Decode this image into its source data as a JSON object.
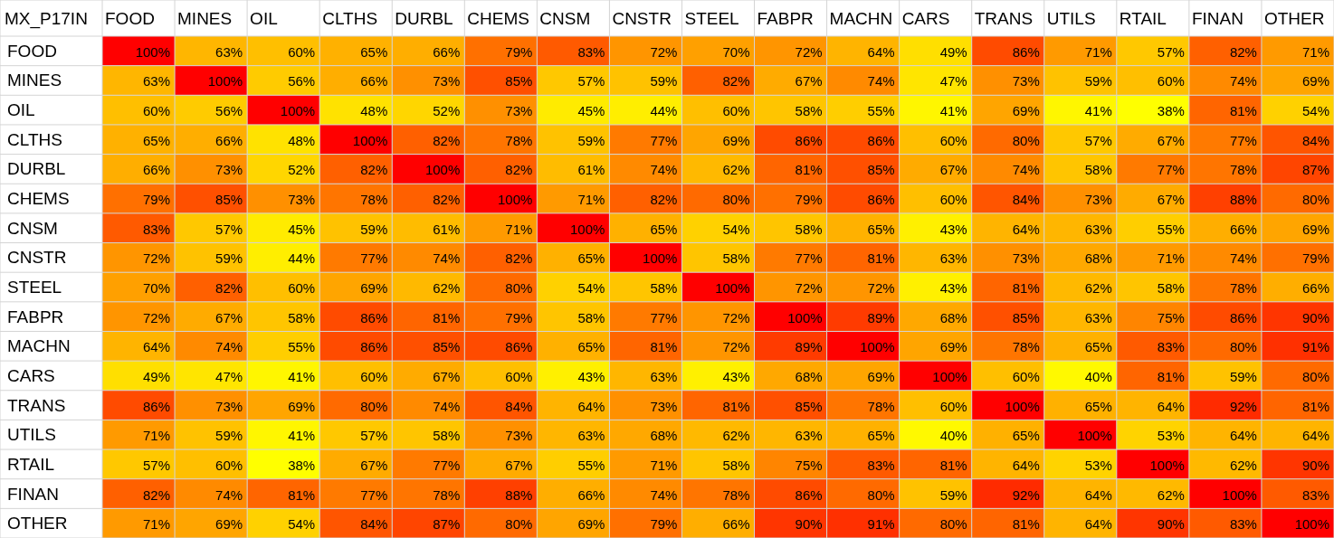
{
  "chart_data": {
    "type": "heatmap",
    "title": "MX_P17IN",
    "categories": [
      "FOOD",
      "MINES",
      "OIL",
      "CLTHS",
      "DURBL",
      "CHEMS",
      "CNSM",
      "CNSTR",
      "STEEL",
      "FABPR",
      "MACHN",
      "CARS",
      "TRANS",
      "UTILS",
      "RTAIL",
      "FINAN",
      "OTHER"
    ],
    "y_categories": [
      "FOOD",
      "MINES",
      "OIL",
      "CLTHS",
      "DURBL",
      "CHEMS",
      "CNSM",
      "CNSTR",
      "STEEL",
      "FABPR",
      "MACHN",
      "CARS",
      "TRANS",
      "UTILS",
      "RTAIL",
      "FINAN",
      "OTHER"
    ],
    "cells": [
      [
        100,
        63,
        60,
        65,
        66,
        79,
        83,
        72,
        70,
        72,
        64,
        49,
        86,
        71,
        57,
        82,
        71
      ],
      [
        63,
        100,
        56,
        66,
        73,
        85,
        57,
        59,
        82,
        67,
        74,
        47,
        73,
        59,
        60,
        74,
        69
      ],
      [
        60,
        56,
        100,
        48,
        52,
        73,
        45,
        44,
        60,
        58,
        55,
        41,
        69,
        41,
        38,
        81,
        54
      ],
      [
        65,
        66,
        48,
        100,
        82,
        78,
        59,
        77,
        69,
        86,
        86,
        60,
        80,
        57,
        67,
        77,
        84
      ],
      [
        66,
        73,
        52,
        82,
        100,
        82,
        61,
        74,
        62,
        81,
        85,
        67,
        74,
        58,
        77,
        78,
        87
      ],
      [
        79,
        85,
        73,
        78,
        82,
        100,
        71,
        82,
        80,
        79,
        86,
        60,
        84,
        73,
        67,
        88,
        80
      ],
      [
        83,
        57,
        45,
        59,
        61,
        71,
        100,
        65,
        54,
        58,
        65,
        43,
        64,
        63,
        55,
        66,
        69
      ],
      [
        72,
        59,
        44,
        77,
        74,
        82,
        65,
        100,
        58,
        77,
        81,
        63,
        73,
        68,
        71,
        74,
        79
      ],
      [
        70,
        82,
        60,
        69,
        62,
        80,
        54,
        58,
        100,
        72,
        72,
        43,
        81,
        62,
        58,
        78,
        66
      ],
      [
        72,
        67,
        58,
        86,
        81,
        79,
        58,
        77,
        72,
        100,
        89,
        68,
        85,
        63,
        75,
        86,
        90
      ],
      [
        64,
        74,
        55,
        86,
        85,
        86,
        65,
        81,
        72,
        89,
        100,
        69,
        78,
        65,
        83,
        80,
        91
      ],
      [
        49,
        47,
        41,
        60,
        67,
        60,
        43,
        63,
        43,
        68,
        69,
        100,
        60,
        40,
        81,
        59,
        80
      ],
      [
        86,
        73,
        69,
        80,
        74,
        84,
        64,
        73,
        81,
        85,
        78,
        60,
        100,
        65,
        64,
        92,
        81
      ],
      [
        71,
        59,
        41,
        57,
        58,
        73,
        63,
        68,
        62,
        63,
        65,
        40,
        65,
        100,
        53,
        64,
        64
      ],
      [
        57,
        60,
        38,
        67,
        77,
        67,
        55,
        71,
        58,
        75,
        83,
        81,
        64,
        53,
        100,
        62,
        90
      ],
      [
        82,
        74,
        81,
        77,
        78,
        88,
        66,
        74,
        78,
        86,
        80,
        59,
        92,
        64,
        62,
        100,
        83
      ],
      [
        71,
        69,
        54,
        84,
        87,
        80,
        69,
        79,
        66,
        90,
        91,
        80,
        81,
        64,
        90,
        83,
        100
      ]
    ],
    "cell_labels": [
      [
        "100%",
        "63%",
        "60%",
        "65%",
        "66%",
        "79%",
        "83%",
        "72%",
        "70%",
        "72%",
        "64%",
        "49%",
        "86%",
        "71%",
        "57%",
        "82%",
        "71%"
      ],
      [
        "63%",
        "100%",
        "56%",
        "66%",
        "73%",
        "85%",
        "57%",
        "59%",
        "82%",
        "67%",
        "74%",
        "47%",
        "73%",
        "59%",
        "60%",
        "74%",
        "69%"
      ],
      [
        "60%",
        "56%",
        "100%",
        "48%",
        "52%",
        "73%",
        "45%",
        "44%",
        "60%",
        "58%",
        "55%",
        "41%",
        "69%",
        "41%",
        "38%",
        "81%",
        "54%"
      ],
      [
        "65%",
        "66%",
        "48%",
        "100%",
        "82%",
        "78%",
        "59%",
        "77%",
        "69%",
        "86%",
        "86%",
        "60%",
        "80%",
        "57%",
        "67%",
        "77%",
        "84%"
      ],
      [
        "66%",
        "73%",
        "52%",
        "82%",
        "100%",
        "82%",
        "61%",
        "74%",
        "62%",
        "81%",
        "85%",
        "67%",
        "74%",
        "58%",
        "77%",
        "78%",
        "87%"
      ],
      [
        "79%",
        "85%",
        "73%",
        "78%",
        "82%",
        "100%",
        "71%",
        "82%",
        "80%",
        "79%",
        "86%",
        "60%",
        "84%",
        "73%",
        "67%",
        "88%",
        "80%"
      ],
      [
        "83%",
        "57%",
        "45%",
        "59%",
        "61%",
        "71%",
        "100%",
        "65%",
        "54%",
        "58%",
        "65%",
        "43%",
        "64%",
        "63%",
        "55%",
        "66%",
        "69%"
      ],
      [
        "72%",
        "59%",
        "44%",
        "77%",
        "74%",
        "82%",
        "65%",
        "100%",
        "58%",
        "77%",
        "81%",
        "63%",
        "73%",
        "68%",
        "71%",
        "74%",
        "79%"
      ],
      [
        "70%",
        "82%",
        "60%",
        "69%",
        "62%",
        "80%",
        "54%",
        "58%",
        "100%",
        "72%",
        "72%",
        "43%",
        "81%",
        "62%",
        "58%",
        "78%",
        "66%"
      ],
      [
        "72%",
        "67%",
        "58%",
        "86%",
        "81%",
        "79%",
        "58%",
        "77%",
        "72%",
        "100%",
        "89%",
        "68%",
        "85%",
        "63%",
        "75%",
        "86%",
        "90%"
      ],
      [
        "64%",
        "74%",
        "55%",
        "86%",
        "85%",
        "86%",
        "65%",
        "81%",
        "72%",
        "89%",
        "100%",
        "69%",
        "78%",
        "65%",
        "83%",
        "80%",
        "91%"
      ],
      [
        "49%",
        "47%",
        "41%",
        "60%",
        "67%",
        "60%",
        "43%",
        "63%",
        "43%",
        "68%",
        "69%",
        "100%",
        "60%",
        "40%",
        "81%",
        "59%",
        "80%"
      ],
      [
        "86%",
        "73%",
        "69%",
        "80%",
        "74%",
        "84%",
        "64%",
        "73%",
        "81%",
        "85%",
        "78%",
        "60%",
        "100%",
        "65%",
        "64%",
        "92%",
        "81%"
      ],
      [
        "71%",
        "59%",
        "41%",
        "57%",
        "58%",
        "73%",
        "63%",
        "68%",
        "62%",
        "63%",
        "65%",
        "40%",
        "65%",
        "100%",
        "53%",
        "64%",
        "64%"
      ],
      [
        "57%",
        "60%",
        "38%",
        "67%",
        "77%",
        "67%",
        "55%",
        "71%",
        "58%",
        "75%",
        "83%",
        "81%",
        "64%",
        "53%",
        "100%",
        "62%",
        "90%"
      ],
      [
        "82%",
        "74%",
        "81%",
        "77%",
        "78%",
        "88%",
        "66%",
        "74%",
        "78%",
        "86%",
        "80%",
        "59%",
        "92%",
        "64%",
        "62%",
        "100%",
        "83%"
      ],
      [
        "71%",
        "69%",
        "54%",
        "84%",
        "87%",
        "80%",
        "69%",
        "79%",
        "66%",
        "90%",
        "91%",
        "80%",
        "81%",
        "64%",
        "90%",
        "83%",
        "100%"
      ]
    ]
  }
}
